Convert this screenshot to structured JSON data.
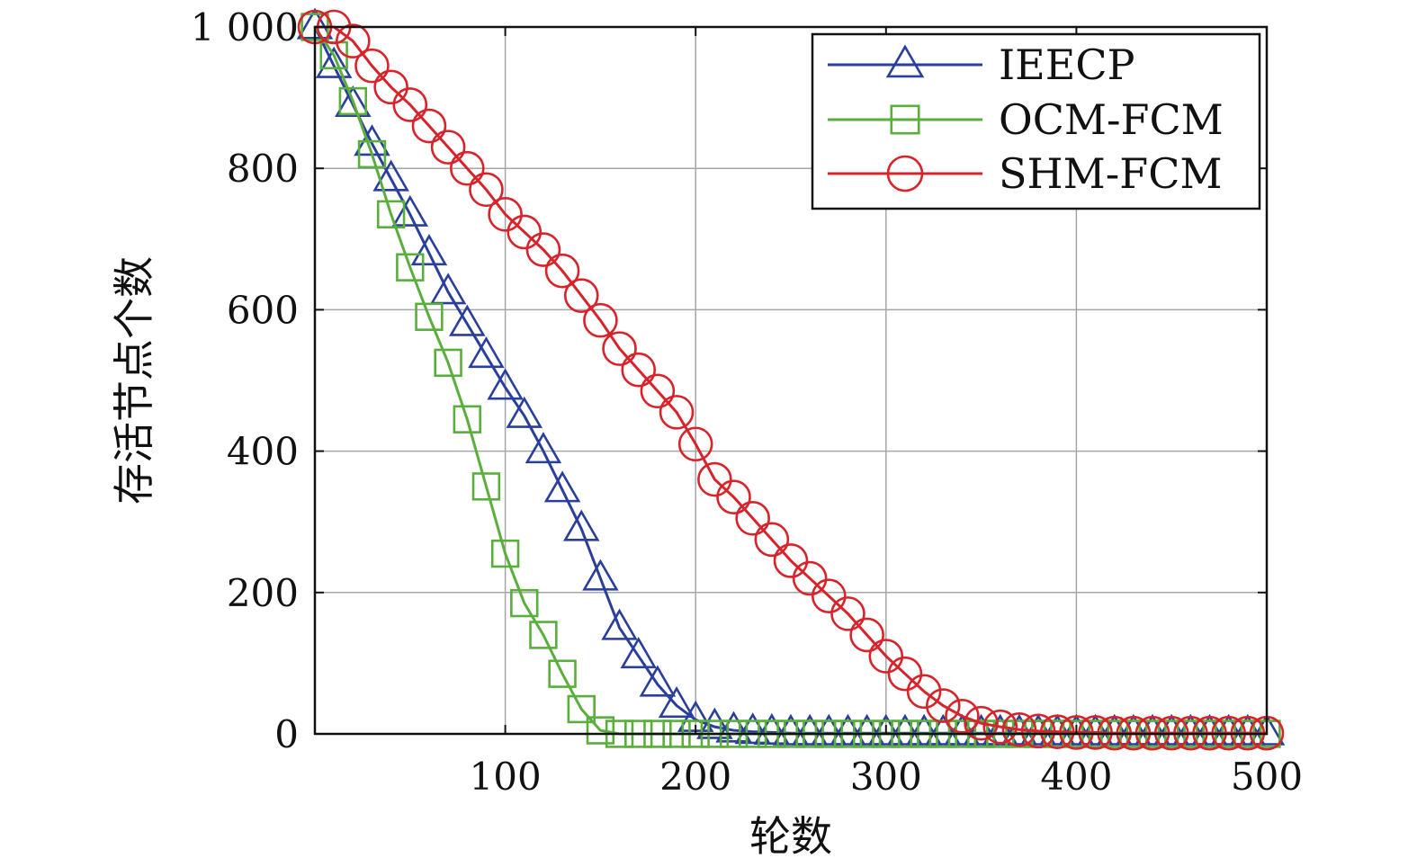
{
  "chart_data": {
    "type": "line",
    "title": "",
    "xlabel": "轮数",
    "ylabel": "存活节点个数",
    "xlim": [
      0,
      500
    ],
    "ylim": [
      0,
      1000
    ],
    "xticks": [
      100,
      200,
      300,
      400,
      500
    ],
    "xtick_labels": [
      "100",
      "200",
      "300",
      "400",
      "500"
    ],
    "yticks": [
      0,
      200,
      400,
      600,
      800,
      1000
    ],
    "ytick_labels": [
      "0",
      "200",
      "400",
      "600",
      "800",
      "1 000"
    ],
    "grid": true,
    "legend_position": "top-right",
    "series": [
      {
        "name": "IEECP",
        "color": "#2a3f9c",
        "marker": "triangle",
        "x": [
          0,
          10,
          20,
          30,
          40,
          50,
          60,
          70,
          80,
          90,
          100,
          110,
          120,
          130,
          140,
          150,
          160,
          170,
          180,
          190,
          200,
          210,
          220,
          230,
          240,
          250,
          260,
          270,
          280,
          290,
          300,
          310,
          320,
          330,
          340,
          350,
          360,
          370,
          380,
          390,
          400,
          410,
          420,
          430,
          440,
          450,
          460,
          470,
          480,
          490,
          500
        ],
        "y": [
          1000,
          945,
          890,
          835,
          785,
          735,
          680,
          625,
          580,
          535,
          490,
          450,
          400,
          345,
          290,
          220,
          150,
          110,
          70,
          40,
          20,
          10,
          5,
          3,
          2,
          1,
          1,
          1,
          1,
          1,
          1,
          1,
          1,
          1,
          1,
          1,
          1,
          1,
          1,
          1,
          1,
          1,
          1,
          1,
          1,
          1,
          1,
          1,
          1,
          1,
          1
        ]
      },
      {
        "name": "OCM-FCM",
        "color": "#5aae3c",
        "marker": "square",
        "x": [
          0,
          10,
          20,
          30,
          40,
          50,
          60,
          70,
          80,
          90,
          100,
          110,
          120,
          130,
          140,
          150,
          160,
          170,
          180,
          190,
          200,
          210,
          220,
          230,
          240,
          250,
          260,
          270,
          280,
          290,
          300,
          310,
          320,
          330,
          340,
          350,
          360,
          370,
          380,
          390,
          400,
          410,
          420,
          430,
          440,
          450,
          460,
          470,
          480,
          490,
          500
        ],
        "y": [
          1000,
          960,
          895,
          820,
          735,
          660,
          590,
          525,
          445,
          350,
          255,
          185,
          140,
          85,
          35,
          5,
          0,
          0,
          0,
          0,
          0,
          0,
          0,
          0,
          0,
          0,
          0,
          0,
          0,
          0,
          0,
          0,
          0,
          0,
          0,
          0,
          0,
          0,
          0,
          0,
          0,
          0,
          0,
          0,
          0,
          0,
          0,
          0,
          0,
          0,
          0
        ]
      },
      {
        "name": "SHM-FCM",
        "color": "#d8232a",
        "marker": "circle",
        "x": [
          0,
          10,
          20,
          30,
          40,
          50,
          60,
          70,
          80,
          90,
          100,
          110,
          120,
          130,
          140,
          150,
          160,
          170,
          180,
          190,
          200,
          210,
          220,
          230,
          240,
          250,
          260,
          270,
          280,
          290,
          300,
          310,
          320,
          330,
          340,
          350,
          360,
          370,
          380,
          390,
          400,
          410,
          420,
          430,
          440,
          450,
          460,
          470,
          480,
          490,
          500
        ],
        "y": [
          1000,
          1000,
          980,
          945,
          915,
          890,
          860,
          830,
          800,
          770,
          735,
          710,
          685,
          655,
          620,
          585,
          545,
          515,
          485,
          455,
          410,
          360,
          335,
          305,
          275,
          245,
          220,
          195,
          170,
          140,
          110,
          85,
          60,
          40,
          25,
          15,
          10,
          6,
          4,
          3,
          2,
          2,
          1,
          1,
          1,
          1,
          1,
          1,
          1,
          1,
          1
        ]
      }
    ]
  }
}
